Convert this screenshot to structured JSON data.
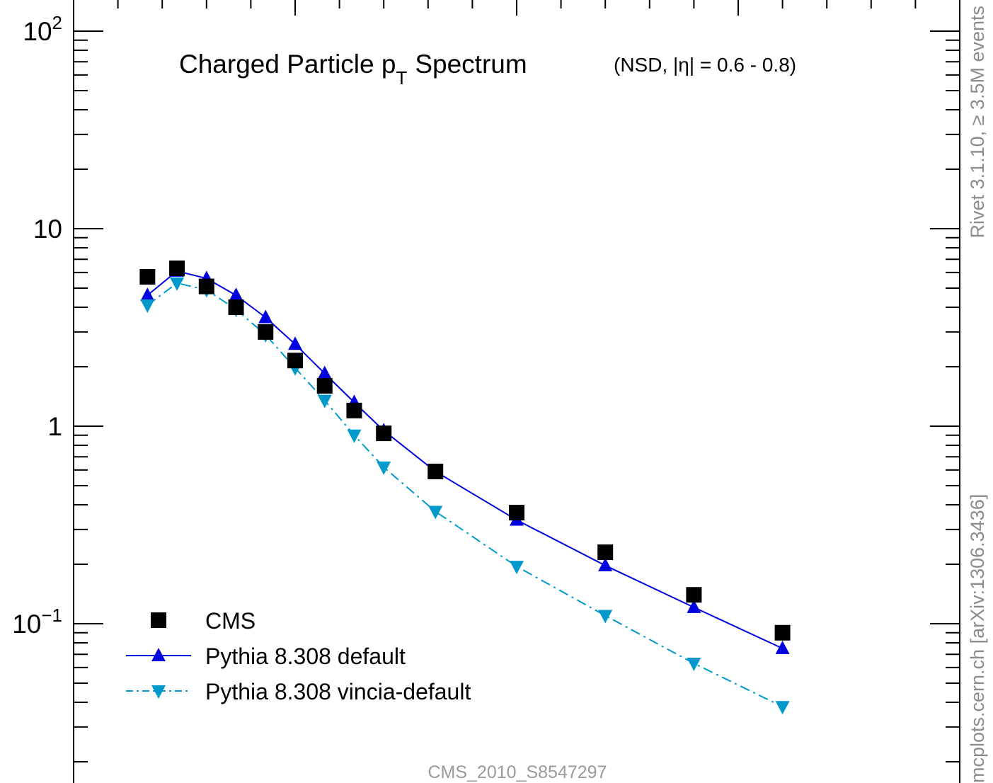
{
  "chart_data": {
    "type": "line",
    "title": "Charged Particle p",
    "title_sub": "T",
    "title_after": "Spectrum",
    "title_qualifier": "(NSD, |η| = 0.6 - 0.8)",
    "y_scale": "log",
    "ylim": [
      0.02,
      150
    ],
    "xlim": [
      0.05,
      6.0
    ],
    "y_tick_labels": [
      {
        "value": 100,
        "base": "10",
        "exp": "2"
      },
      {
        "value": 10,
        "base": "10",
        "exp": ""
      },
      {
        "value": 1,
        "base": "1",
        "exp": ""
      },
      {
        "value": 0.1,
        "base": "10",
        "exp": "−1"
      }
    ],
    "grid": false,
    "legend_position": "bottom-left",
    "series": [
      {
        "name": "CMS",
        "marker": "square",
        "line": "none",
        "color": "#000000",
        "points": [
          [
            0.5,
            5.7
          ],
          [
            0.7,
            6.3
          ],
          [
            0.9,
            5.1
          ],
          [
            1.1,
            4.0
          ],
          [
            1.3,
            3.0
          ],
          [
            1.5,
            2.15
          ],
          [
            1.7,
            1.6
          ],
          [
            1.9,
            1.2
          ],
          [
            2.1,
            0.92
          ],
          [
            2.45,
            0.59
          ],
          [
            3.0,
            0.365
          ],
          [
            3.6,
            0.23
          ],
          [
            4.2,
            0.14
          ],
          [
            4.8,
            0.09
          ]
        ]
      },
      {
        "name": "Pythia 8.308 default",
        "marker": "triangle-up",
        "line": "solid",
        "color": "#0000e0",
        "points": [
          [
            0.5,
            4.6
          ],
          [
            0.7,
            6.1
          ],
          [
            0.9,
            5.6
          ],
          [
            1.1,
            4.6
          ],
          [
            1.3,
            3.55
          ],
          [
            1.5,
            2.6
          ],
          [
            1.7,
            1.85
          ],
          [
            1.9,
            1.32
          ],
          [
            2.1,
            0.95
          ],
          [
            2.45,
            0.59
          ],
          [
            3.0,
            0.335
          ],
          [
            3.6,
            0.197
          ],
          [
            4.2,
            0.121
          ],
          [
            4.8,
            0.075
          ]
        ]
      },
      {
        "name": "Pythia 8.308 vincia-default",
        "marker": "triangle-down",
        "line": "dashdot",
        "color": "#0099cc",
        "points": [
          [
            0.5,
            4.1
          ],
          [
            0.7,
            5.3
          ],
          [
            0.9,
            4.9
          ],
          [
            1.1,
            3.9
          ],
          [
            1.3,
            2.9
          ],
          [
            1.5,
            1.97
          ],
          [
            1.7,
            1.35
          ],
          [
            1.9,
            0.9
          ],
          [
            2.1,
            0.62
          ],
          [
            2.45,
            0.37
          ],
          [
            3.0,
            0.195
          ],
          [
            3.6,
            0.11
          ],
          [
            4.2,
            0.063
          ],
          [
            4.8,
            0.038
          ]
        ]
      }
    ],
    "watermark_right_top": "Rivet 3.1.10, ≥ 3.5M events",
    "watermark_right_bottom": "mcplots.cern.ch [arXiv:1306.3436]",
    "analysis_id": "CMS_2010_S8547297"
  }
}
